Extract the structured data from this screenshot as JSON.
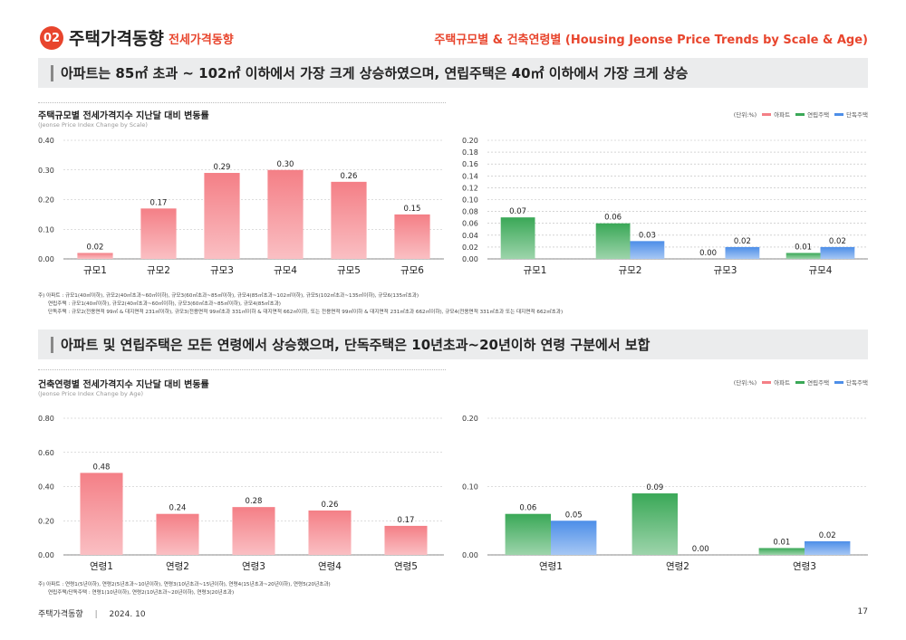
{
  "header": {
    "badge": "02",
    "title": "주택가격동향",
    "subtitle": "전세가격동향",
    "right_title": "주택규모별 & 건축연령별 (Housing Jeonse Price Trends by Scale & Age)"
  },
  "colors": {
    "apt": "#f47f86",
    "row": "#3aa857",
    "detached": "#4d8ee8",
    "accent": "#e8452d"
  },
  "section1": {
    "headline": "아파트는 85㎡ 초과 ~ 102㎡ 이하에서 가장 크게 상승하였으며, 연립주택은 40㎡ 이하에서 가장 크게 상승",
    "chart_title": "주택규모별 전세가격지수 지난달 대비 변동률",
    "chart_subtitle": "(Jeonse Price Index Change by Scale)",
    "unit": "(단위:%)",
    "legend": [
      "아파트",
      "연립주택",
      "단독주택"
    ],
    "notes": [
      "주) 아파트 : 규모1(40㎡이하), 규모2(40㎡초과~60㎡이하), 규모3(60㎡초과~85㎡이하), 규모4(85㎡초과~102㎡이하), 규모5(102㎡초과~135㎡이하), 규모6(135㎡초과)",
      "연립주택 : 규모1(40㎡이하), 규모2(40㎡초과~60㎡이하), 규모3(60㎡초과~85㎡이하), 규모4(85㎡초과)",
      "단독주택 : 규모2(전용면적 99㎡ & 대지면적 231㎡이하), 규모3(전용면적 99㎡초과 331㎡이하 & 대지면적 662㎡이하, 또는 전용면적 99㎡이하 & 대지면적 231㎡초과 662㎡이하), 규모4(전용면적 331㎡초과 또는 대지면적 662㎡초과)"
    ]
  },
  "section2": {
    "headline": "아파트 및 연립주택은 모든 연령에서 상승했으며, 단독주택은 10년초과~20년이하 연령 구분에서 보합",
    "chart_title": "건축연령별 전세가격지수 지난달 대비 변동률",
    "chart_subtitle": "(Jeonse Price Index Change by Age)",
    "unit": "(단위:%)",
    "legend": [
      "아파트",
      "연립주택",
      "단독주택"
    ],
    "notes": [
      "주) 아파트 : 연령1(5년이하), 연령2(5년초과~10년이하), 연령3(10년초과~15년이하), 연령4(15년초과~20년이하), 연령5(20년초과)",
      "연립주택/단독주택 : 연령1(10년이하), 연령2(10년초과~20년이하), 연령3(20년초과)"
    ]
  },
  "footer": {
    "text": "주택가격동향",
    "sep": "|",
    "date": "2024. 10",
    "page": "17"
  },
  "chart_data": [
    {
      "type": "bar",
      "id": "scale_apt",
      "categories": [
        "규모1",
        "규모2",
        "규모3",
        "규모4",
        "규모5",
        "규모6"
      ],
      "series": [
        {
          "name": "아파트",
          "color": "#f47f86",
          "values": [
            0.02,
            0.17,
            0.29,
            0.3,
            0.26,
            0.15
          ]
        }
      ],
      "ylim": [
        0,
        0.4
      ],
      "yticks": [
        "0.00",
        "0.10",
        "0.20",
        "0.30",
        "0.40"
      ]
    },
    {
      "type": "bar",
      "id": "scale_row_det",
      "categories": [
        "규모1",
        "규모2",
        "규모3",
        "규모4"
      ],
      "series": [
        {
          "name": "연립주택",
          "color": "#3aa857",
          "values": [
            0.07,
            0.06,
            0.0,
            0.01
          ]
        },
        {
          "name": "단독주택",
          "color": "#4d8ee8",
          "values": [
            null,
            0.03,
            0.02,
            0.02
          ]
        }
      ],
      "ylim": [
        0,
        0.2
      ],
      "yticks": [
        "0.00",
        "0.02",
        "0.04",
        "0.06",
        "0.08",
        "0.10",
        "0.12",
        "0.14",
        "0.16",
        "0.18",
        "0.20"
      ]
    },
    {
      "type": "bar",
      "id": "age_apt",
      "categories": [
        "연령1",
        "연령2",
        "연령3",
        "연령4",
        "연령5"
      ],
      "series": [
        {
          "name": "아파트",
          "color": "#f47f86",
          "values": [
            0.48,
            0.24,
            0.28,
            0.26,
            0.17
          ]
        }
      ],
      "ylim": [
        0,
        0.8
      ],
      "yticks": [
        "0.00",
        "0.20",
        "0.40",
        "0.60",
        "0.80"
      ]
    },
    {
      "type": "bar",
      "id": "age_row_det",
      "categories": [
        "연령1",
        "연령2",
        "연령3"
      ],
      "series": [
        {
          "name": "연립주택",
          "color": "#3aa857",
          "values": [
            0.06,
            0.09,
            0.01
          ]
        },
        {
          "name": "단독주택",
          "color": "#4d8ee8",
          "values": [
            0.05,
            0.0,
            0.02
          ]
        }
      ],
      "ylim": [
        0,
        0.2
      ],
      "yticks": [
        "0.00",
        "0.10",
        "0.20"
      ]
    }
  ]
}
